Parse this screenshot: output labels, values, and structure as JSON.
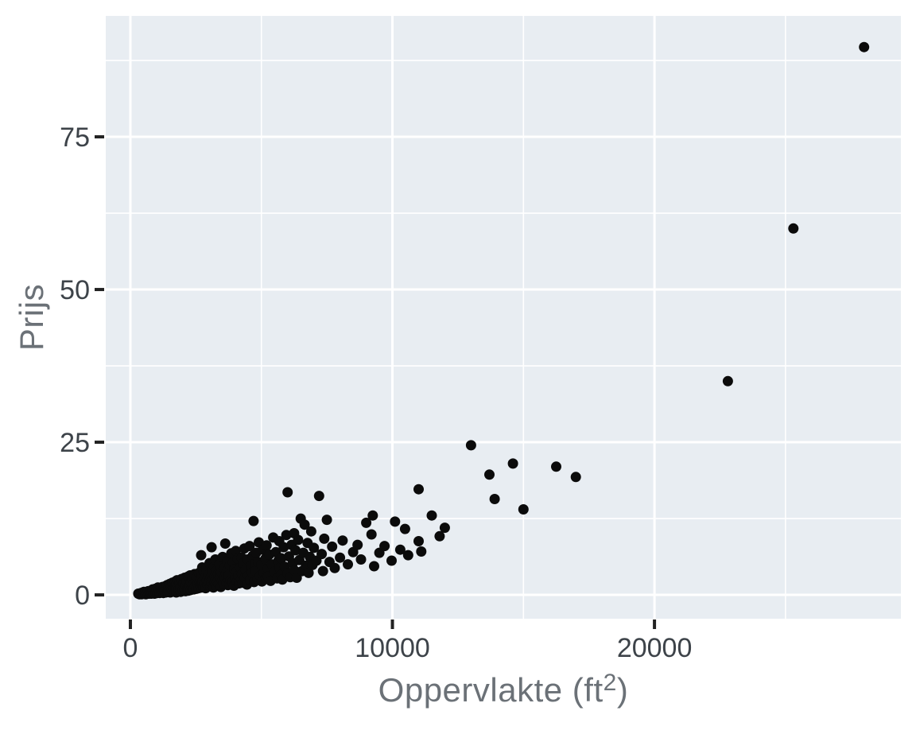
{
  "chart_data": {
    "type": "scatter",
    "title": "",
    "xlabel": "Oppervlakte (ft²)",
    "xlabel_parts": [
      "Oppervlakte (ft",
      "2",
      ")"
    ],
    "ylabel": "Prijs",
    "xlim": [
      -940,
      29404
    ],
    "ylim": [
      -3.9,
      94.8
    ],
    "x_breaks": [
      {
        "value": 0,
        "label": "0"
      },
      {
        "value": 10000,
        "label": "10000"
      },
      {
        "value": 20000,
        "label": "20000"
      }
    ],
    "x_minor_breaks": [
      5000,
      15000,
      25000
    ],
    "y_breaks": [
      {
        "value": 0,
        "label": "0"
      },
      {
        "value": 25,
        "label": "25"
      },
      {
        "value": 50,
        "label": "50"
      },
      {
        "value": 75,
        "label": "75"
      }
    ],
    "y_minor_breaks": [
      12.5,
      37.5,
      62.5,
      87.5
    ],
    "grid": "on",
    "legend": "none",
    "style": {
      "panel_bg": "#e8edf2",
      "grid_color": "#ffffff",
      "point_color": "#0b0b0b",
      "point_radius": 6.5,
      "tick_mark_color": "#222222",
      "tick_label_color": "#3d4349",
      "axis_title_color": "#6b7177",
      "outer_bg": "#ffffff"
    },
    "points": [
      [
        300,
        0.2
      ],
      [
        350,
        0.1
      ],
      [
        400,
        0.3
      ],
      [
        430,
        0.1
      ],
      [
        470,
        0.4
      ],
      [
        500,
        0.2
      ],
      [
        520,
        0.5
      ],
      [
        560,
        0.3
      ],
      [
        590,
        0.1
      ],
      [
        620,
        0.5
      ],
      [
        650,
        0.3
      ],
      [
        680,
        0.6
      ],
      [
        710,
        0.2
      ],
      [
        740,
        0.4
      ],
      [
        760,
        0.3
      ],
      [
        780,
        0.7
      ],
      [
        800,
        0.2
      ],
      [
        820,
        0.5
      ],
      [
        850,
        0.9
      ],
      [
        870,
        0.3
      ],
      [
        900,
        0.6
      ],
      [
        920,
        0.2
      ],
      [
        950,
        1.0
      ],
      [
        970,
        0.4
      ],
      [
        1000,
        0.7
      ],
      [
        1020,
        0.3
      ],
      [
        1050,
        1.2
      ],
      [
        1070,
        0.5
      ],
      [
        1100,
        0.8
      ],
      [
        1120,
        0.3
      ],
      [
        1150,
        1.0
      ],
      [
        1170,
        0.6
      ],
      [
        1200,
        0.4
      ],
      [
        1220,
        1.3
      ],
      [
        1240,
        0.8
      ],
      [
        1250,
        0.5
      ],
      [
        1260,
        0.3
      ],
      [
        1280,
        1.0
      ],
      [
        1300,
        0.6
      ],
      [
        1320,
        1.4
      ],
      [
        1350,
        0.4
      ],
      [
        1370,
        0.9
      ],
      [
        1400,
        1.6
      ],
      [
        1420,
        0.5
      ],
      [
        1450,
        1.1
      ],
      [
        1470,
        0.7
      ],
      [
        1500,
        1.8
      ],
      [
        1520,
        0.4
      ],
      [
        1550,
        1.3
      ],
      [
        1570,
        0.8
      ],
      [
        1600,
        2.0
      ],
      [
        1620,
        0.6
      ],
      [
        1650,
        1.5
      ],
      [
        1670,
        1.0
      ],
      [
        1700,
        0.5
      ],
      [
        1710,
        2.2
      ],
      [
        1730,
        1.2
      ],
      [
        1740,
        0.8
      ],
      [
        1745,
        1.7
      ],
      [
        1750,
        0.4
      ],
      [
        1760,
        1.0
      ],
      [
        1780,
        2.4
      ],
      [
        1800,
        0.6
      ],
      [
        1820,
        1.5
      ],
      [
        1850,
        0.9
      ],
      [
        1870,
        2.0
      ],
      [
        1900,
        1.2
      ],
      [
        1920,
        0.5
      ],
      [
        1950,
        2.6
      ],
      [
        1970,
        1.4
      ],
      [
        2000,
        0.8
      ],
      [
        2020,
        1.9
      ],
      [
        2050,
        1.1
      ],
      [
        2070,
        2.8
      ],
      [
        2100,
        0.6
      ],
      [
        2120,
        1.6
      ],
      [
        2150,
        2.2
      ],
      [
        2170,
        1.0
      ],
      [
        2200,
        3.0
      ],
      [
        2210,
        1.3
      ],
      [
        2220,
        0.7
      ],
      [
        2230,
        2.5
      ],
      [
        2240,
        1.8
      ],
      [
        2245,
        1.1
      ],
      [
        2250,
        0.9
      ],
      [
        2260,
        1.5
      ],
      [
        2280,
        3.2
      ],
      [
        2300,
        0.8
      ],
      [
        2320,
        2.0
      ],
      [
        2350,
        1.2
      ],
      [
        2370,
        2.7
      ],
      [
        2400,
        1.7
      ],
      [
        2420,
        0.9
      ],
      [
        2450,
        3.4
      ],
      [
        2470,
        1.4
      ],
      [
        2500,
        2.3
      ],
      [
        2520,
        1.0
      ],
      [
        2550,
        2.9
      ],
      [
        2570,
        1.8
      ],
      [
        2600,
        1.1
      ],
      [
        2620,
        3.6
      ],
      [
        2650,
        2.1
      ],
      [
        2670,
        1.5
      ],
      [
        2700,
        6.5
      ],
      [
        2700,
        2.6
      ],
      [
        2710,
        1.2
      ],
      [
        2720,
        3.1
      ],
      [
        2730,
        1.9
      ],
      [
        2740,
        4.5
      ],
      [
        2750,
        1.4
      ],
      [
        2760,
        2.2
      ],
      [
        2780,
        1.3
      ],
      [
        2800,
        3.8
      ],
      [
        2820,
        1.8
      ],
      [
        2850,
        2.8
      ],
      [
        2870,
        1.1
      ],
      [
        2900,
        4.2
      ],
      [
        2920,
        2.4
      ],
      [
        2950,
        1.6
      ],
      [
        2970,
        3.3
      ],
      [
        3000,
        2.0
      ],
      [
        3020,
        5.2
      ],
      [
        3050,
        1.4
      ],
      [
        3070,
        2.9
      ],
      [
        3100,
        7.8
      ],
      [
        3100,
        1.9
      ],
      [
        3120,
        3.9
      ],
      [
        3150,
        2.5
      ],
      [
        3170,
        1.2
      ],
      [
        3200,
        4.6
      ],
      [
        3220,
        3.0
      ],
      [
        3230,
        2.1
      ],
      [
        3240,
        5.8
      ],
      [
        3250,
        1.7
      ],
      [
        3260,
        2.6
      ],
      [
        3280,
        1.5
      ],
      [
        3300,
        4.0
      ],
      [
        3320,
        2.2
      ],
      [
        3350,
        3.4
      ],
      [
        3370,
        1.8
      ],
      [
        3400,
        5.0
      ],
      [
        3420,
        2.8
      ],
      [
        3450,
        1.3
      ],
      [
        3470,
        3.7
      ],
      [
        3500,
        2.3
      ],
      [
        3520,
        6.2
      ],
      [
        3550,
        1.9
      ],
      [
        3570,
        4.4
      ],
      [
        3600,
        2.9
      ],
      [
        3620,
        8.4
      ],
      [
        3650,
        3.5
      ],
      [
        3670,
        2.0
      ],
      [
        3700,
        5.5
      ],
      [
        3720,
        1.6
      ],
      [
        3730,
        4.1
      ],
      [
        3750,
        2.7
      ],
      [
        3760,
        3.2
      ],
      [
        3780,
        1.8
      ],
      [
        3800,
        4.8
      ],
      [
        3820,
        2.4
      ],
      [
        3850,
        6.8
      ],
      [
        3870,
        3.6
      ],
      [
        3900,
        2.1
      ],
      [
        3920,
        5.3
      ],
      [
        3950,
        1.5
      ],
      [
        3970,
        4.2
      ],
      [
        4000,
        2.9
      ],
      [
        4020,
        7.2
      ],
      [
        4050,
        3.8
      ],
      [
        4070,
        2.2
      ],
      [
        4100,
        5.9
      ],
      [
        4120,
        3.1
      ],
      [
        4150,
        1.9
      ],
      [
        4200,
        4.5
      ],
      [
        4230,
        2.6
      ],
      [
        4250,
        6.1
      ],
      [
        4260,
        3.4
      ],
      [
        4280,
        2.0
      ],
      [
        4300,
        5.2
      ],
      [
        4350,
        7.6
      ],
      [
        4370,
        2.8
      ],
      [
        4400,
        4.1
      ],
      [
        4450,
        1.7
      ],
      [
        4470,
        5.8
      ],
      [
        4500,
        3.2
      ],
      [
        4550,
        8.0
      ],
      [
        4570,
        2.4
      ],
      [
        4600,
        4.7
      ],
      [
        4650,
        3.7
      ],
      [
        4670,
        6.4
      ],
      [
        4700,
        12.1
      ],
      [
        4720,
        2.1
      ],
      [
        4750,
        5.1
      ],
      [
        4760,
        3.9
      ],
      [
        4800,
        6.9
      ],
      [
        4850,
        2.6
      ],
      [
        4870,
        5.4
      ],
      [
        4900,
        8.6
      ],
      [
        4950,
        3.1
      ],
      [
        5000,
        4.9
      ],
      [
        5020,
        2.2
      ],
      [
        5050,
        7.4
      ],
      [
        5100,
        3.6
      ],
      [
        5150,
        5.9
      ],
      [
        5170,
        2.8
      ],
      [
        5200,
        8.1
      ],
      [
        5250,
        4.3
      ],
      [
        5260,
        3.0
      ],
      [
        5300,
        6.6
      ],
      [
        5350,
        2.3
      ],
      [
        5400,
        5.0
      ],
      [
        5450,
        9.4
      ],
      [
        5500,
        3.8
      ],
      [
        5550,
        7.0
      ],
      [
        5600,
        2.7
      ],
      [
        5650,
        5.6
      ],
      [
        5680,
        8.8
      ],
      [
        5700,
        4.4
      ],
      [
        5750,
        3.3
      ],
      [
        5760,
        6.0
      ],
      [
        5800,
        2.5
      ],
      [
        5850,
        7.8
      ],
      [
        5900,
        4.6
      ],
      [
        5950,
        9.8
      ],
      [
        6000,
        16.8
      ],
      [
        6000,
        3.5
      ],
      [
        6050,
        6.3
      ],
      [
        6100,
        2.9
      ],
      [
        6150,
        8.2
      ],
      [
        6200,
        5.2
      ],
      [
        6250,
        10.1
      ],
      [
        6260,
        4.0
      ],
      [
        6300,
        7.3
      ],
      [
        6350,
        2.8
      ],
      [
        6400,
        9.0
      ],
      [
        6450,
        5.7
      ],
      [
        6500,
        12.5
      ],
      [
        6550,
        3.9
      ],
      [
        6600,
        6.9
      ],
      [
        6650,
        11.5
      ],
      [
        6700,
        4.8
      ],
      [
        6760,
        8.5
      ],
      [
        6800,
        3.6
      ],
      [
        6850,
        6.2
      ],
      [
        6900,
        10.4
      ],
      [
        6950,
        4.9
      ],
      [
        7000,
        7.7
      ],
      [
        7100,
        5.6
      ],
      [
        7200,
        16.2
      ],
      [
        7300,
        6.7
      ],
      [
        7350,
        3.9
      ],
      [
        7400,
        9.2
      ],
      [
        7500,
        12.3
      ],
      [
        7600,
        5.4
      ],
      [
        7700,
        7.9
      ],
      [
        7800,
        4.4
      ],
      [
        8000,
        6.1
      ],
      [
        8100,
        8.9
      ],
      [
        8300,
        5.0
      ],
      [
        8500,
        7.0
      ],
      [
        8670,
        8.2
      ],
      [
        8800,
        5.8
      ],
      [
        9000,
        11.8
      ],
      [
        9200,
        9.9
      ],
      [
        9250,
        13.0
      ],
      [
        9300,
        4.7
      ],
      [
        9500,
        6.9
      ],
      [
        9700,
        8.0
      ],
      [
        9970,
        5.6
      ],
      [
        10100,
        12.0
      ],
      [
        10300,
        7.4
      ],
      [
        10480,
        10.8
      ],
      [
        10600,
        6.5
      ],
      [
        11000,
        17.3
      ],
      [
        11000,
        8.8
      ],
      [
        11100,
        7.1
      ],
      [
        11500,
        13.0
      ],
      [
        11800,
        9.6
      ],
      [
        12000,
        11.0
      ],
      [
        13000,
        24.5
      ],
      [
        13700,
        19.7
      ],
      [
        13900,
        15.7
      ],
      [
        14600,
        21.5
      ],
      [
        15000,
        14.0
      ],
      [
        16250,
        21.0
      ],
      [
        17000,
        19.3
      ],
      [
        22800,
        35.0
      ],
      [
        25300,
        60.0
      ],
      [
        28000,
        89.7
      ]
    ]
  }
}
